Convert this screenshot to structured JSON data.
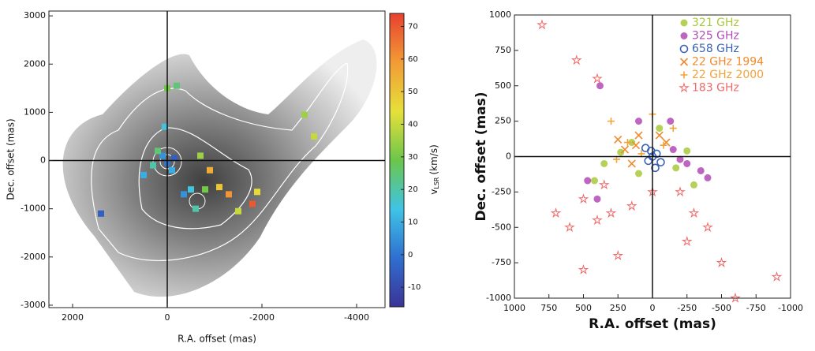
{
  "chart_data": [
    {
      "type": "scatter",
      "xlabel": "R.A. offset (mas)",
      "ylabel": "Dec. offset (mas)",
      "xlim": [
        2500,
        -4600
      ],
      "ylim": [
        -3050,
        3100
      ],
      "xticks": [
        2000,
        0,
        -2000,
        -4000
      ],
      "yticks": [
        3000,
        2000,
        1000,
        0,
        -1000,
        -2000,
        -3000
      ],
      "colorbar": {
        "label": "v",
        "label_sub": "LSR",
        "label_unit": "(km/s)",
        "lim": [
          -16,
          74
        ],
        "ticks": [
          70,
          60,
          50,
          40,
          30,
          20,
          10,
          0,
          -10
        ],
        "colormap": [
          "#3b3396",
          "#2f6fd0",
          "#3fc4e6",
          "#6cc64a",
          "#e6e03a",
          "#f29b35",
          "#e8412f"
        ]
      },
      "x": [
        100,
        0,
        -150,
        200,
        -100,
        300,
        -500,
        -800,
        -1100,
        -1300,
        -1900,
        -1800,
        -1500,
        0,
        -200,
        -3100,
        -2900,
        1400,
        50,
        -600,
        -350,
        500,
        -700,
        -900
      ],
      "y": [
        100,
        -50,
        50,
        200,
        -200,
        -100,
        -600,
        -600,
        -550,
        -700,
        -650,
        -900,
        -1050,
        1500,
        1550,
        500,
        950,
        -1100,
        700,
        -1000,
        -700,
        -300,
        100,
        -200
      ],
      "values": [
        5,
        0,
        -5,
        25,
        10,
        20,
        15,
        30,
        50,
        60,
        45,
        70,
        40,
        30,
        25,
        40,
        35,
        -5,
        15,
        20,
        5,
        10,
        35,
        55
      ]
    },
    {
      "type": "scatter",
      "xlabel": "R.A. offset (mas)",
      "ylabel": "Dec. offset (mas)",
      "xlim": [
        1000,
        -1000
      ],
      "ylim": [
        -1000,
        1000
      ],
      "xticks": [
        1000,
        750,
        500,
        250,
        0,
        -250,
        -500,
        -750,
        -1000
      ],
      "yticks": [
        1000,
        750,
        500,
        250,
        0,
        -250,
        -500,
        -750,
        -1000
      ],
      "legend": "upper right",
      "series": [
        {
          "name": "321 GHz",
          "color": "#a9c93a",
          "marker": "circle",
          "x": [
            350,
            230,
            150,
            -50,
            -170,
            -250,
            100,
            -300,
            420
          ],
          "y": [
            -50,
            30,
            100,
            200,
            -80,
            40,
            -120,
            -200,
            -170
          ]
        },
        {
          "name": "325 GHz",
          "color": "#b24ab6",
          "marker": "circle",
          "x": [
            -150,
            -250,
            -350,
            -400,
            400,
            100,
            470,
            -130,
            380,
            -200
          ],
          "y": [
            50,
            -50,
            -100,
            -150,
            -300,
            250,
            -170,
            250,
            500,
            -20
          ]
        },
        {
          "name": "658 GHz",
          "color": "#3a62b4",
          "marker": "open-circle",
          "x": [
            0,
            30,
            -30,
            50,
            -60,
            10,
            -20
          ],
          "y": [
            0,
            -30,
            20,
            60,
            -40,
            40,
            -80
          ]
        },
        {
          "name": "22 GHz 1994",
          "color": "#f08a2c",
          "marker": "x",
          "x": [
            120,
            100,
            200,
            -50,
            -100,
            150,
            250
          ],
          "y": [
            80,
            150,
            50,
            150,
            100,
            -50,
            120
          ]
        },
        {
          "name": "22 GHz 2000",
          "color": "#f3a23a",
          "marker": "plus",
          "x": [
            180,
            80,
            300,
            -80,
            -150,
            0,
            260
          ],
          "y": [
            100,
            20,
            250,
            80,
            200,
            300,
            -20
          ]
        },
        {
          "name": "183 GHz",
          "color": "#f06868",
          "marker": "star",
          "x": [
            800,
            550,
            400,
            300,
            500,
            400,
            600,
            700,
            250,
            -300,
            -200,
            -400,
            -250,
            -500,
            -600,
            -900,
            500,
            0,
            150,
            350
          ],
          "y": [
            930,
            680,
            550,
            -400,
            -300,
            -450,
            -500,
            -400,
            -700,
            -400,
            -250,
            -500,
            -600,
            -750,
            -1000,
            -850,
            -800,
            -250,
            -350,
            -200
          ]
        }
      ]
    }
  ]
}
